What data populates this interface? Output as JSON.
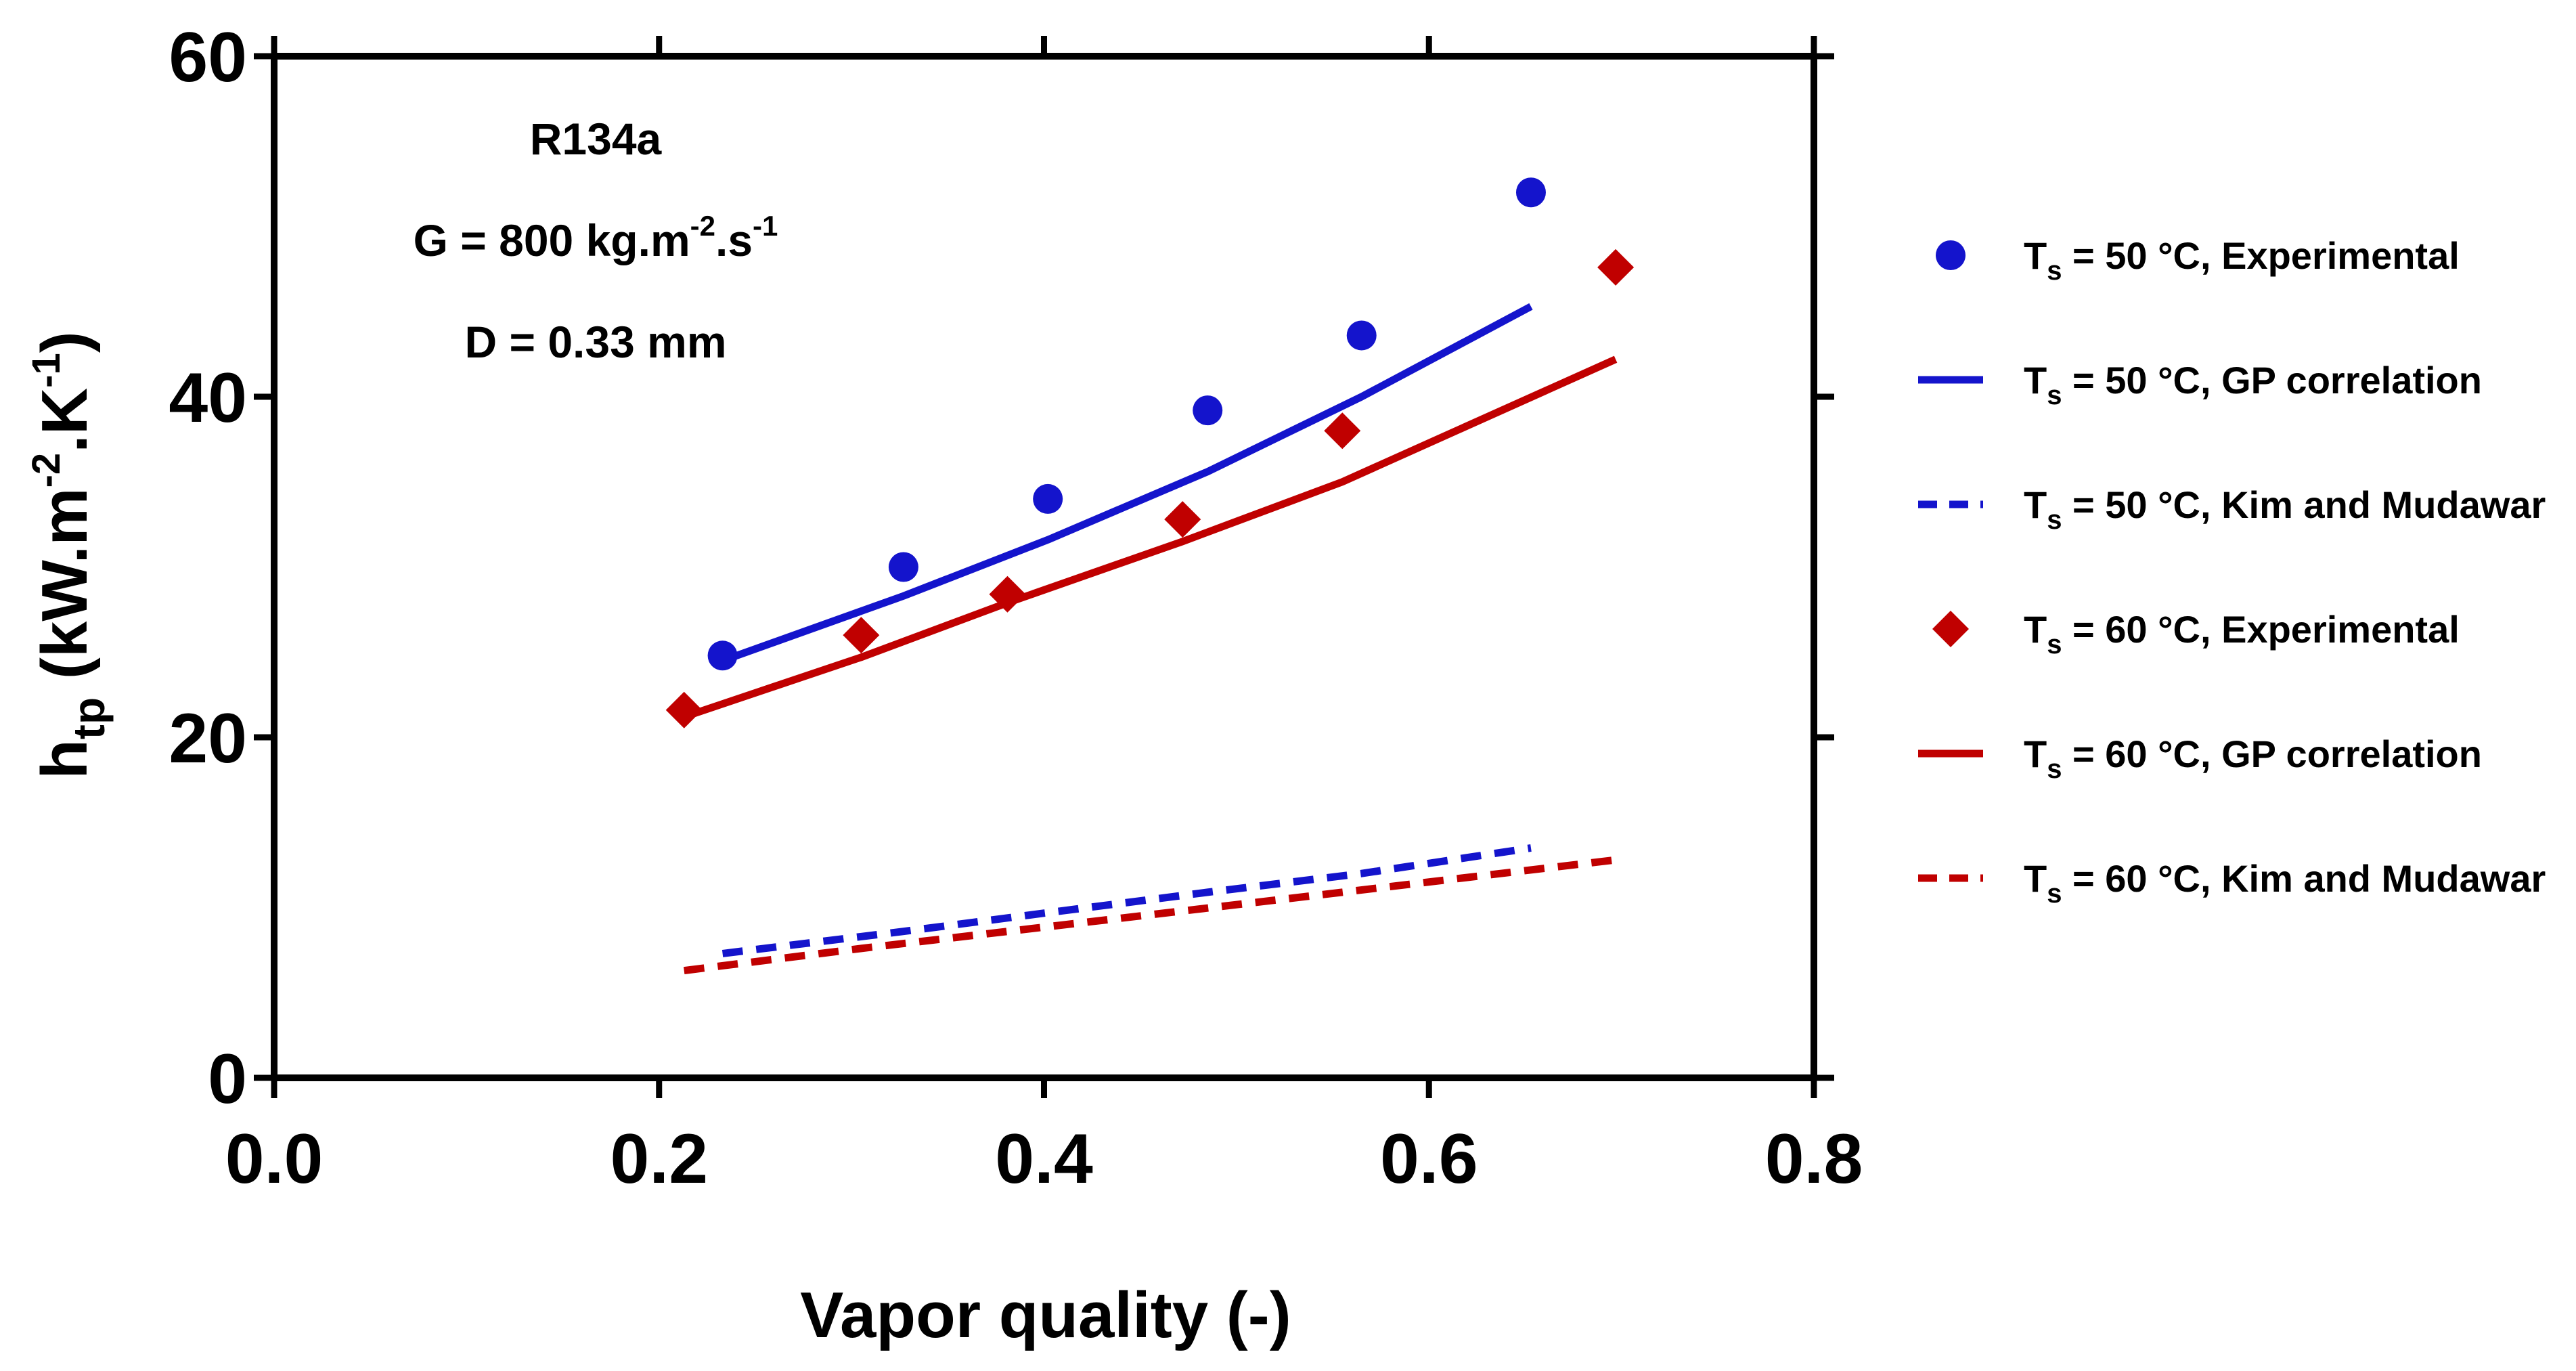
{
  "chart_data": {
    "type": "scatter",
    "xlabel": "Vapor quality (-)",
    "ylabel": {
      "base": "h",
      "sub": "tp",
      "unit_pre": " (kW.m",
      "exp1": "-2",
      "unit_mid": ".K",
      "exp2": "-1",
      "unit_post": ")"
    },
    "xlim": [
      0.0,
      0.8
    ],
    "ylim": [
      0,
      60
    ],
    "xticks": [
      0.0,
      0.2,
      0.4,
      0.6,
      0.8
    ],
    "xtick_labels": [
      "0.0",
      "0.2",
      "0.4",
      "0.6",
      "0.8"
    ],
    "yticks": [
      0,
      20,
      40,
      60
    ],
    "ytick_labels": [
      "0",
      "20",
      "40",
      "60"
    ],
    "annotations": {
      "fluid": "R134a",
      "mass_flux": {
        "pre": "G = 800 kg.m",
        "exp1": "-2",
        "mid": ".s",
        "exp2": "-1"
      },
      "diameter": "D = 0.33 mm"
    },
    "colors": {
      "blue": "#1414cc",
      "red": "#c00000"
    },
    "series": [
      {
        "name": "Ts = 50 °C, Experimental",
        "legend": {
          "pre": "T",
          "sub": "s",
          "post": " = 50 °C, Experimental"
        },
        "kind": "marker",
        "marker": "circle",
        "color": "#1414cc",
        "x": [
          0.233,
          0.327,
          0.402,
          0.485,
          0.565,
          0.653
        ],
        "y": [
          24.8,
          30.0,
          34.0,
          39.2,
          43.6,
          52.0
        ]
      },
      {
        "name": "Ts = 50 °C, GP correlation",
        "legend": {
          "pre": "T",
          "sub": "s",
          "post": " = 50 °C, GP correlation"
        },
        "kind": "line",
        "dash": "solid",
        "color": "#1414cc",
        "x": [
          0.233,
          0.327,
          0.402,
          0.485,
          0.565,
          0.653
        ],
        "y": [
          24.5,
          28.3,
          31.6,
          35.6,
          40.0,
          45.3
        ]
      },
      {
        "name": "Ts = 50 °C, Kim and Mudawar",
        "legend": {
          "pre": "T",
          "sub": "s",
          "post": " = 50 °C, Kim and Mudawar"
        },
        "kind": "line",
        "dash": "dashed",
        "color": "#1414cc",
        "x": [
          0.233,
          0.327,
          0.402,
          0.485,
          0.565,
          0.653
        ],
        "y": [
          7.3,
          8.6,
          9.7,
          10.9,
          12.0,
          13.5
        ]
      },
      {
        "name": "Ts = 60 °C, Experimental",
        "legend": {
          "pre": "T",
          "sub": "s",
          "post": " = 60 °C, Experimental"
        },
        "kind": "marker",
        "marker": "diamond",
        "color": "#c00000",
        "x": [
          0.213,
          0.305,
          0.381,
          0.472,
          0.555,
          0.697
        ],
        "y": [
          21.6,
          26.0,
          28.4,
          32.8,
          38.0,
          47.6
        ]
      },
      {
        "name": "Ts = 60 °C, GP correlation",
        "legend": {
          "pre": "T",
          "sub": "s",
          "post": " = 60 °C, GP correlation"
        },
        "kind": "line",
        "dash": "solid",
        "color": "#c00000",
        "x": [
          0.213,
          0.305,
          0.381,
          0.472,
          0.555,
          0.697
        ],
        "y": [
          21.2,
          24.7,
          27.9,
          31.5,
          35.0,
          42.2
        ]
      },
      {
        "name": "Ts = 60 °C, Kim and Mudawar",
        "legend": {
          "pre": "T",
          "sub": "s",
          "post": " = 60 °C, Kim and Mudawar"
        },
        "kind": "line",
        "dash": "dashed",
        "color": "#c00000",
        "x": [
          0.213,
          0.305,
          0.381,
          0.472,
          0.555,
          0.697
        ],
        "y": [
          6.3,
          7.6,
          8.6,
          9.8,
          10.9,
          12.8
        ]
      }
    ]
  }
}
